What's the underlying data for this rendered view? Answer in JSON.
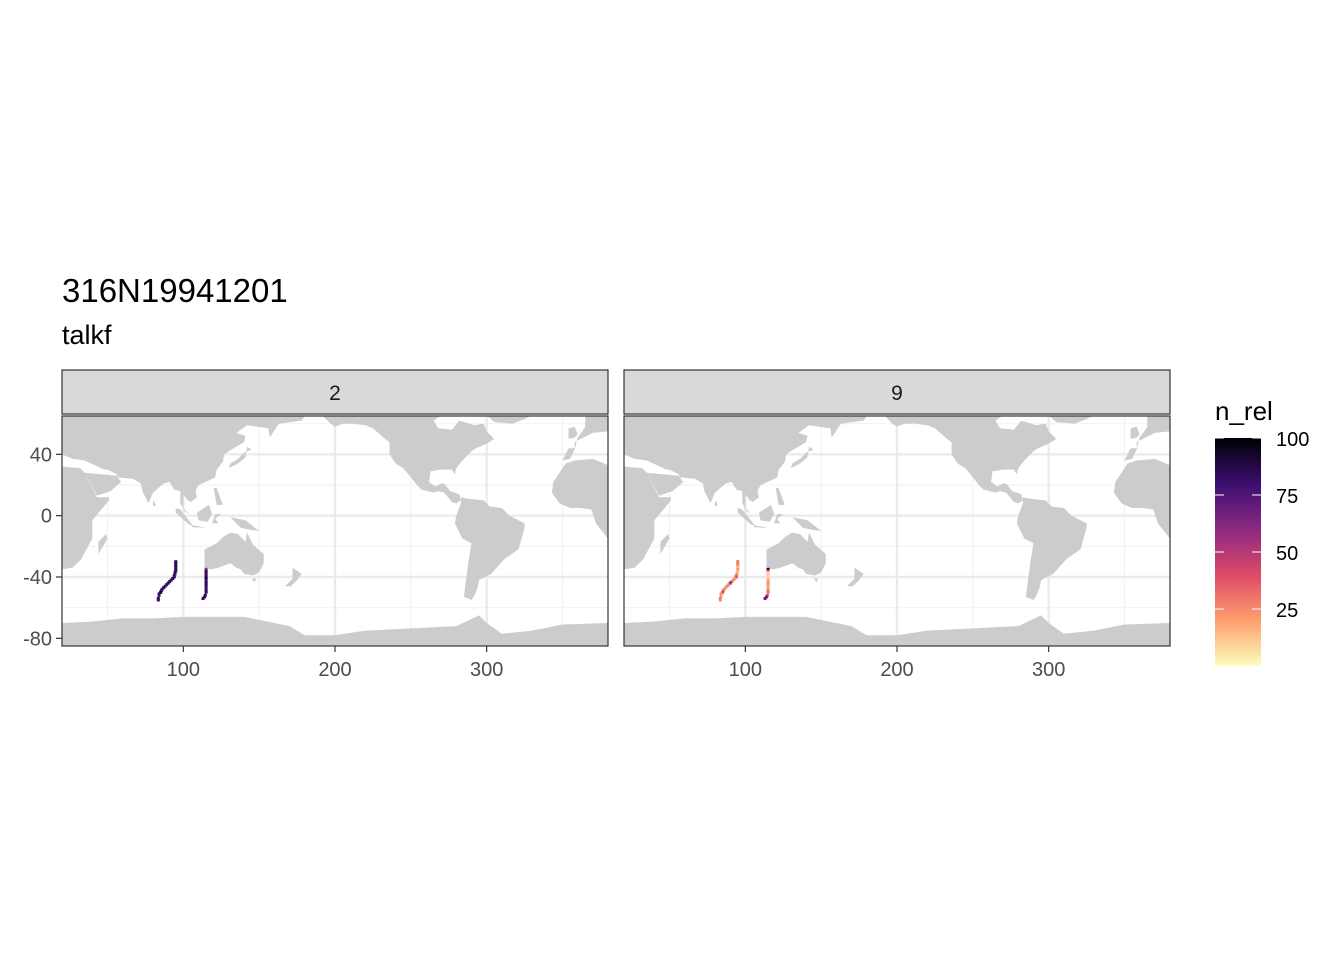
{
  "chart_data": {
    "type": "heatmap",
    "title": "316N19941201",
    "subtitle": "talkf",
    "xlim": [
      20,
      380
    ],
    "ylim": [
      -85,
      65
    ],
    "x_ticks": [
      100,
      200,
      300
    ],
    "y_ticks": [
      40,
      0,
      -40,
      -80
    ],
    "grid": true,
    "legend": {
      "title": "n_rel",
      "position": "right",
      "ticks": [
        100,
        75,
        50,
        25
      ],
      "range": [
        0,
        100
      ],
      "palette": "magma",
      "colors": [
        "#fcfdbf",
        "#fe9f6d",
        "#de4968",
        "#8c2981",
        "#3b0f70",
        "#000004"
      ]
    },
    "land_color": "#cccccc",
    "panels": [
      {
        "label": "2",
        "points": [
          [
            95,
            -30,
            82
          ],
          [
            95,
            -31,
            85
          ],
          [
            95,
            -32,
            80
          ],
          [
            95,
            -33,
            88
          ],
          [
            95,
            -34,
            78
          ],
          [
            95,
            -35,
            82
          ],
          [
            95,
            -36,
            84
          ],
          [
            94.5,
            -37,
            80
          ],
          [
            94.5,
            -38,
            86
          ],
          [
            94,
            -39,
            79
          ],
          [
            94,
            -40,
            82
          ],
          [
            93,
            -41,
            84
          ],
          [
            92,
            -42,
            80
          ],
          [
            91,
            -43,
            83
          ],
          [
            90,
            -44,
            90
          ],
          [
            89,
            -45,
            78
          ],
          [
            88,
            -46,
            82
          ],
          [
            87,
            -47,
            85
          ],
          [
            86,
            -48,
            81
          ],
          [
            85.5,
            -49,
            79
          ],
          [
            85,
            -50,
            92
          ],
          [
            84,
            -51,
            82
          ],
          [
            84,
            -52,
            80
          ],
          [
            83.5,
            -54,
            84
          ],
          [
            83.5,
            -55,
            82
          ],
          [
            115,
            -35,
            55
          ],
          [
            115,
            -36,
            83
          ],
          [
            115,
            -37,
            85
          ],
          [
            115,
            -38,
            80
          ],
          [
            115,
            -39,
            82
          ],
          [
            115,
            -40,
            84
          ],
          [
            115,
            -41,
            95
          ],
          [
            115,
            -42,
            82
          ],
          [
            115,
            -43,
            80
          ],
          [
            115,
            -44,
            86
          ],
          [
            115,
            -45,
            82
          ],
          [
            115,
            -46,
            84
          ],
          [
            115,
            -47,
            80
          ],
          [
            115,
            -48,
            78
          ],
          [
            115,
            -49,
            85
          ],
          [
            115,
            -50,
            82
          ],
          [
            114.5,
            -52,
            83
          ],
          [
            114,
            -53,
            80
          ],
          [
            113,
            -54,
            86
          ]
        ]
      },
      {
        "label": "9",
        "points": [
          [
            95,
            -30,
            30
          ],
          [
            95,
            -31,
            25
          ],
          [
            95,
            -32,
            28
          ],
          [
            95,
            -33,
            20
          ],
          [
            95,
            -34,
            15
          ],
          [
            95,
            -35,
            22
          ],
          [
            95,
            -36,
            18
          ],
          [
            94.5,
            -37,
            12
          ],
          [
            94.5,
            -38,
            20
          ],
          [
            94,
            -39,
            26
          ],
          [
            94,
            -40,
            38
          ],
          [
            93,
            -41,
            24
          ],
          [
            92,
            -42,
            22
          ],
          [
            91,
            -43,
            30
          ],
          [
            90,
            -44,
            70
          ],
          [
            89,
            -45,
            25
          ],
          [
            88,
            -46,
            28
          ],
          [
            87,
            -47,
            24
          ],
          [
            86,
            -48,
            22
          ],
          [
            85.5,
            -49,
            30
          ],
          [
            85,
            -50,
            40
          ],
          [
            84,
            -51,
            25
          ],
          [
            84,
            -52,
            22
          ],
          [
            83.5,
            -54,
            30
          ],
          [
            83.5,
            -55,
            25
          ],
          [
            115,
            -35,
            95
          ],
          [
            115,
            -36,
            60
          ],
          [
            115,
            -37,
            15
          ],
          [
            115,
            -38,
            10
          ],
          [
            115,
            -39,
            12
          ],
          [
            115,
            -40,
            8
          ],
          [
            115,
            -41,
            10
          ],
          [
            115,
            -42,
            18
          ],
          [
            115,
            -43,
            20
          ],
          [
            115,
            -44,
            22
          ],
          [
            115,
            -45,
            25
          ],
          [
            115,
            -46,
            18
          ],
          [
            115,
            -47,
            20
          ],
          [
            115,
            -48,
            22
          ],
          [
            115,
            -49,
            28
          ],
          [
            115,
            -50,
            30
          ],
          [
            114.5,
            -52,
            35
          ],
          [
            114,
            -53,
            65
          ],
          [
            113,
            -54,
            70
          ]
        ]
      }
    ]
  }
}
